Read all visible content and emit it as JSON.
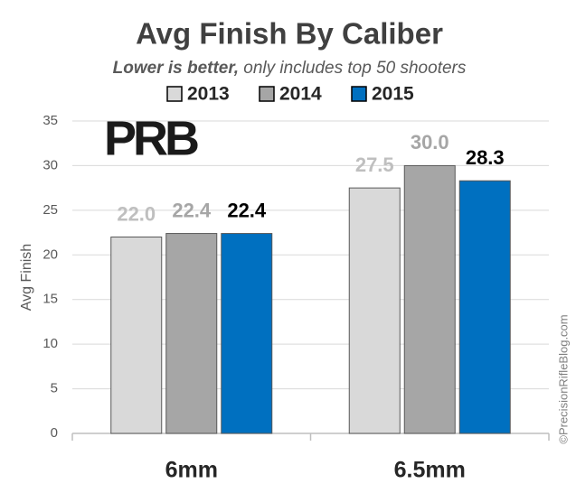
{
  "chart_data": {
    "type": "bar",
    "title": "Avg Finish By Caliber",
    "subtitle": [
      "Lower is better,",
      "only includes top 50 shooters"
    ],
    "logo": "PRB",
    "watermark": "©PrecisionRifleBlog.com",
    "y_label": "Avg Finish",
    "categories": [
      "6mm",
      "6.5mm"
    ],
    "series": [
      {
        "name": "2013",
        "color": "#d9d9d9",
        "label_color": "#bfbfbf",
        "values": [
          22.0,
          27.5
        ],
        "value_labels": [
          "22.0",
          "27.5"
        ]
      },
      {
        "name": "2014",
        "color": "#a6a6a6",
        "label_color": "#a6a6a6",
        "values": [
          22.4,
          30.0
        ],
        "value_labels": [
          "22.4",
          "30.0"
        ]
      },
      {
        "name": "2015",
        "color": "#0070c0",
        "label_color": "#000000",
        "values": [
          22.4,
          28.3
        ],
        "value_labels": [
          "22.4",
          "28.3"
        ]
      }
    ],
    "ylim": [
      0,
      35
    ],
    "yticks": [
      0,
      5,
      10,
      15,
      20,
      25,
      30,
      35
    ],
    "grid": true,
    "legend": "top"
  }
}
